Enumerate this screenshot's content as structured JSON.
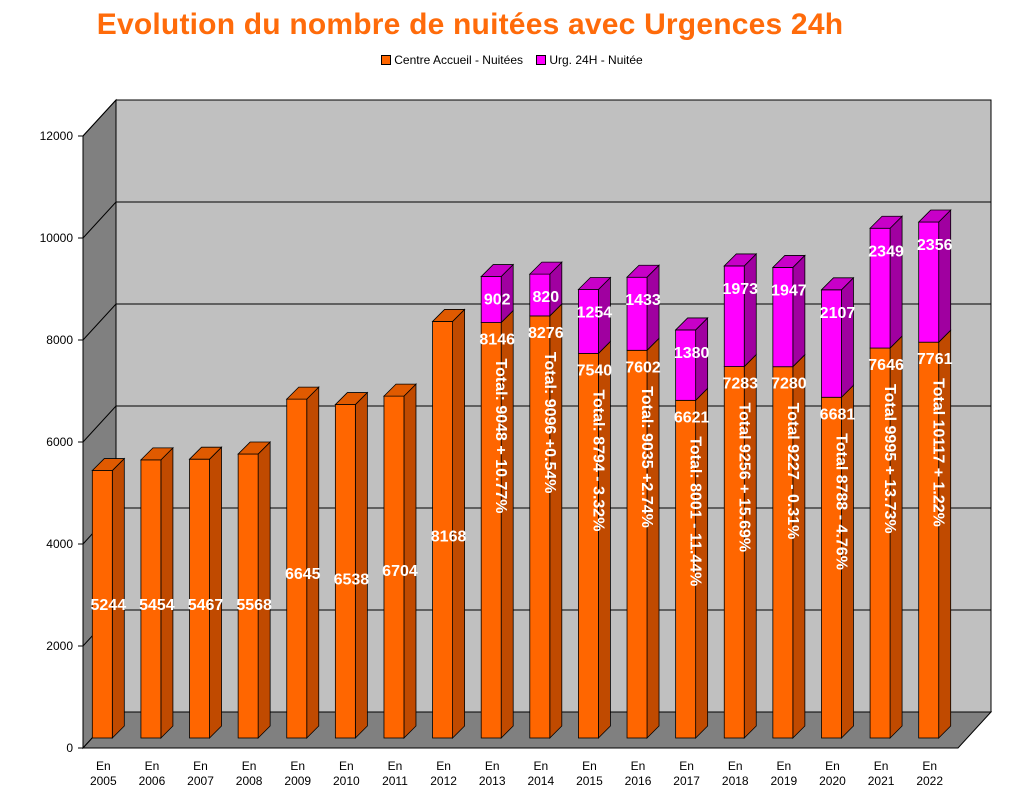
{
  "chart_data": {
    "type": "bar",
    "stacked": true,
    "title": "Evolution du nombre de nuitées avec Urgences 24h",
    "ylim": [
      0,
      12000
    ],
    "yticks": [
      "0",
      "2000",
      "4000",
      "6000",
      "8000",
      "10000",
      "12000"
    ],
    "categories": [
      [
        "En",
        "2005"
      ],
      [
        "En",
        "2006"
      ],
      [
        "En",
        "2007"
      ],
      [
        "En",
        "2008"
      ],
      [
        "En",
        "2009"
      ],
      [
        "En",
        "2010"
      ],
      [
        "En",
        "2011"
      ],
      [
        "En",
        "2012"
      ],
      [
        "En",
        "2013"
      ],
      [
        "En",
        "2014"
      ],
      [
        "En",
        "2015"
      ],
      [
        "En",
        "2016"
      ],
      [
        "En",
        "2017"
      ],
      [
        "En",
        "2018"
      ],
      [
        "En",
        "2019"
      ],
      [
        "En",
        "2020"
      ],
      [
        "En",
        "2021"
      ],
      [
        "En",
        "2022"
      ]
    ],
    "series": [
      {
        "name": "Centre Accueil - Nuitées",
        "color": "#FF6600",
        "values": [
          5244,
          5454,
          5467,
          5568,
          6645,
          6538,
          6704,
          8168,
          8146,
          8276,
          7540,
          7602,
          6621,
          7283,
          7280,
          6681,
          7646,
          7761
        ]
      },
      {
        "name": "Urg. 24H - Nuitée",
        "color": "#FF00FF",
        "values": [
          null,
          null,
          null,
          null,
          null,
          null,
          null,
          null,
          902,
          820,
          1254,
          1433,
          1380,
          1973,
          1947,
          2107,
          2349,
          2356
        ]
      }
    ],
    "annotations": [
      "",
      "",
      "",
      "",
      "",
      "",
      "",
      "",
      "Total: 9048 + 10.77%",
      "Total: 9096 +0.54%",
      "Total: 8794 - 3.32%",
      "Total: 9035 +2.74%",
      "Total: 8001 - 11.44%",
      "Total 9256 + 15.69%",
      "Total 9227 - 0.31%",
      "Total 8788 - 4.76%",
      "Total 9995 + 13.73%",
      "Total 10117 + 1.22%"
    ],
    "grid": true,
    "legend_position": "top-center",
    "style": "3d"
  }
}
